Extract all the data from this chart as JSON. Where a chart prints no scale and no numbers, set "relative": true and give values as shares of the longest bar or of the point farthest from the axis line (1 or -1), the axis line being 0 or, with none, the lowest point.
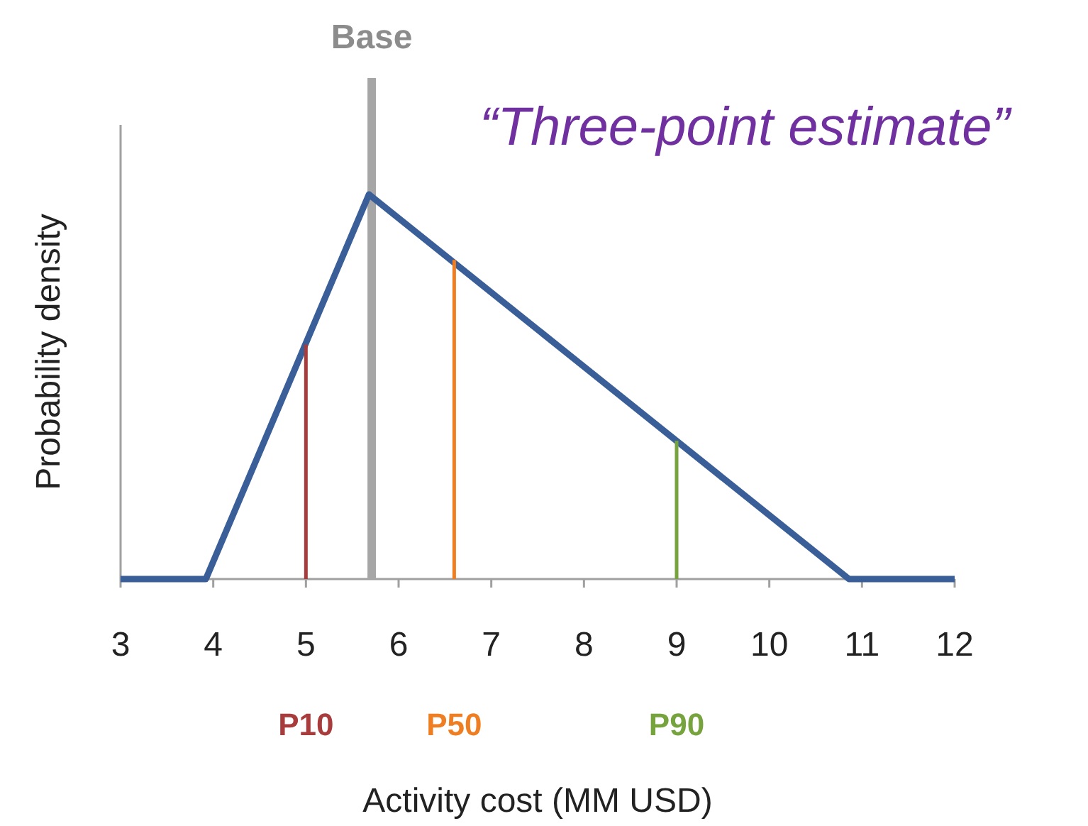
{
  "chart_data": {
    "type": "line",
    "xlabel": "Activity cost (MM USD)",
    "ylabel": "Probability density",
    "relative": true,
    "xlim": [
      3,
      12
    ],
    "xticks": [
      3,
      4,
      5,
      6,
      7,
      8,
      9,
      10,
      11,
      12
    ],
    "x": [
      3,
      3.92,
      5.68,
      10.86,
      12
    ],
    "grid": false,
    "marker": "none",
    "series": [
      {
        "color": "#3a5f98",
        "values": [
          0,
          0,
          1,
          0,
          0
        ]
      },
      {
        "name": "P10",
        "color": "#a83c3c",
        "type": "line",
        "x": [
          5,
          5
        ],
        "values": [
          0,
          0.61
        ]
      },
      {
        "name": "P50",
        "color": "#ef7d22",
        "type": "line",
        "x": [
          6.6,
          6.6
        ],
        "values": [
          0,
          0.83
        ]
      },
      {
        "name": "P90",
        "color": "#77a33e",
        "type": "line",
        "x": [
          9,
          9
        ],
        "values": [
          0,
          0.36
        ]
      }
    ],
    "ref_lines": [
      {
        "axis": "x",
        "value": 5.71,
        "label": "Base",
        "color": "#a6a6a6"
      }
    ],
    "annotations": [
      "“Three-point estimate”"
    ]
  }
}
